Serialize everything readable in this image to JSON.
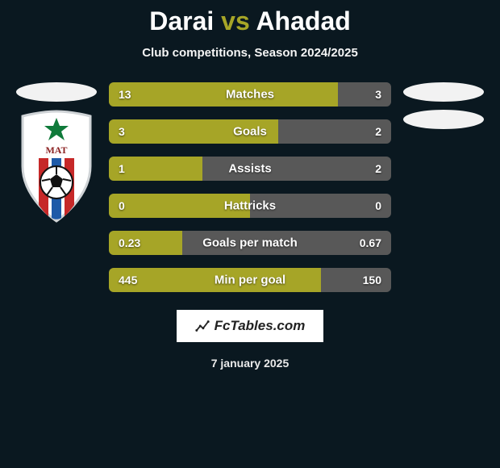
{
  "title": {
    "p1": "Darai",
    "vs": "vs",
    "p2": "Ahadad"
  },
  "subtitle": "Club competitions, Season 2024/2025",
  "colors": {
    "p1": "#a6a527",
    "p2": "#585858",
    "bg": "#0a1820",
    "bar_track": "#2a2a2a"
  },
  "team_badge": {
    "star_fill": "#0f7a3a",
    "stripe_red": "#c62828",
    "stripe_blue": "#1e5aa8",
    "ring": "#cfd3d6",
    "ball_fill": "#ffffff",
    "ball_panel": "#111111"
  },
  "stats": [
    {
      "label": "Matches",
      "v1": "13",
      "v2": "3",
      "ratio1": 0.81
    },
    {
      "label": "Goals",
      "v1": "3",
      "v2": "2",
      "ratio1": 0.6
    },
    {
      "label": "Assists",
      "v1": "1",
      "v2": "2",
      "ratio1": 0.33
    },
    {
      "label": "Hattricks",
      "v1": "0",
      "v2": "0",
      "ratio1": 0.5
    },
    {
      "label": "Goals per match",
      "v1": "0.23",
      "v2": "0.67",
      "ratio1": 0.26
    },
    {
      "label": "Min per goal",
      "v1": "445",
      "v2": "150",
      "ratio1": 0.75
    }
  ],
  "fctables_label": "FcTables.com",
  "date": "7 january 2025"
}
